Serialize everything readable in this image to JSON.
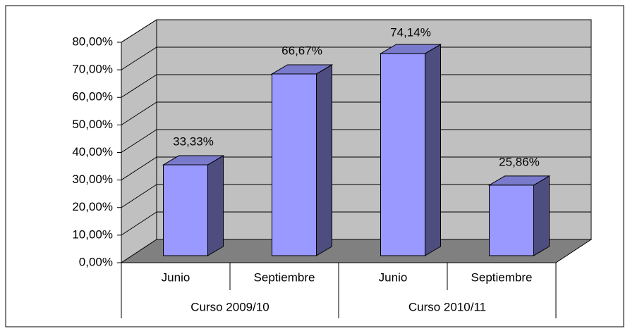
{
  "chart_data": {
    "type": "bar3d",
    "groups": [
      "Curso 2009/10",
      "Curso 2010/11"
    ],
    "categories": [
      "Junio",
      "Septiembre",
      "Junio",
      "Septiembre"
    ],
    "values": [
      33.33,
      66.67,
      74.14,
      25.86
    ],
    "value_labels": [
      "33,33%",
      "66,67%",
      "74,14%",
      "25,86%"
    ],
    "color": "#9999ff",
    "ylim": [
      0,
      80
    ],
    "yticks": [
      {
        "value": 0,
        "label": "0,00%"
      },
      {
        "value": 10,
        "label": "10,00%"
      },
      {
        "value": 20,
        "label": "20,00%"
      },
      {
        "value": 30,
        "label": "30,00%"
      },
      {
        "value": 40,
        "label": "40,00%"
      },
      {
        "value": 50,
        "label": "50,00%"
      },
      {
        "value": 60,
        "label": "60,00%"
      },
      {
        "value": 70,
        "label": "70,00%"
      },
      {
        "value": 80,
        "label": "80,00%"
      }
    ],
    "grid": true
  }
}
